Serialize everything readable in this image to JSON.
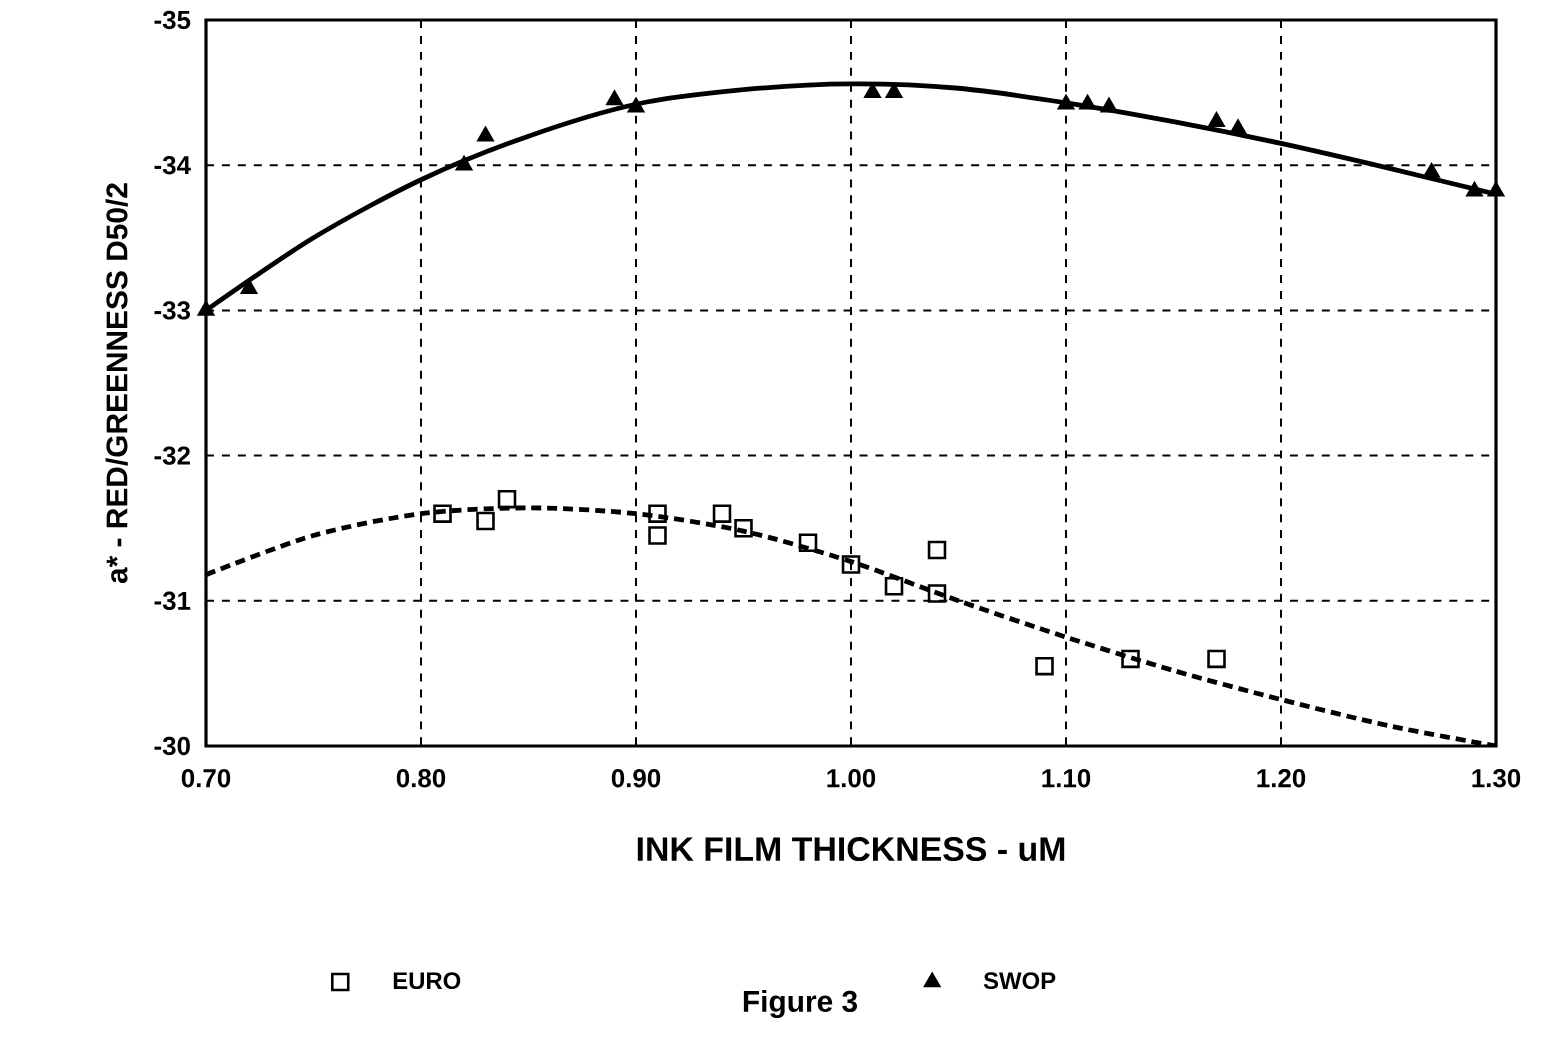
{
  "chart_data": {
    "type": "scatter",
    "xlabel": "INK FILM THICKNESS - uM",
    "ylabel": "a* - RED/GREENNESS D50/2",
    "annotations": [
      "Figure 3"
    ],
    "xlim": [
      0.7,
      1.3
    ],
    "ylim": [
      -30,
      -35
    ],
    "xticks": [
      {
        "value": 0.7,
        "label": "0.70"
      },
      {
        "value": 0.8,
        "label": "0.80"
      },
      {
        "value": 0.9,
        "label": "0.90"
      },
      {
        "value": 1.0,
        "label": "1.00"
      },
      {
        "value": 1.1,
        "label": "1.10"
      },
      {
        "value": 1.2,
        "label": "1.20"
      },
      {
        "value": 1.3,
        "label": "1.30"
      }
    ],
    "yticks": [
      -35,
      -34,
      -33,
      -32,
      -31,
      -30
    ],
    "grid": true,
    "legend": "bottom",
    "series": [
      {
        "name": "EURO",
        "marker": "square",
        "color": "#000000",
        "x": [
          0.81,
          0.83,
          0.84,
          0.91,
          0.91,
          0.94,
          0.95,
          0.98,
          1.0,
          1.02,
          1.04,
          1.04,
          1.09,
          1.13,
          1.17
        ],
        "values": [
          -31.6,
          -31.55,
          -31.7,
          -31.6,
          -31.45,
          -31.6,
          -31.5,
          -31.4,
          -31.25,
          -31.1,
          -31.35,
          -31.05,
          -30.55,
          -30.6,
          -30.6
        ]
      },
      {
        "name": "SWOP",
        "marker": "triangle",
        "color": "#000000",
        "x": [
          0.7,
          0.72,
          0.82,
          0.83,
          0.89,
          0.9,
          1.01,
          1.02,
          1.1,
          1.11,
          1.12,
          1.17,
          1.18,
          1.27,
          1.29,
          1.3
        ],
        "values": [
          -33.0,
          -33.15,
          -34.0,
          -34.2,
          -34.45,
          -34.4,
          -34.5,
          -34.5,
          -34.42,
          -34.42,
          -34.4,
          -34.3,
          -34.25,
          -33.95,
          -33.82,
          -33.82
        ]
      },
      {
        "type": "line",
        "marker": "none",
        "line_style": "dashed",
        "color": "#000000",
        "x": [
          0.7,
          0.75,
          0.8,
          0.85,
          0.9,
          0.95,
          1.0,
          1.05,
          1.1,
          1.15,
          1.2,
          1.25,
          1.3
        ],
        "values": [
          -31.18,
          -31.45,
          -31.6,
          -31.64,
          -31.6,
          -31.48,
          -31.27,
          -31.0,
          -30.75,
          -30.52,
          -30.32,
          -30.14,
          -30.0
        ]
      },
      {
        "type": "line",
        "marker": "none",
        "line_style": "solid",
        "color": "#000000",
        "x": [
          0.7,
          0.75,
          0.8,
          0.85,
          0.9,
          0.95,
          1.0,
          1.05,
          1.1,
          1.15,
          1.2,
          1.25,
          1.3
        ],
        "values": [
          -33.0,
          -33.5,
          -33.9,
          -34.2,
          -34.42,
          -34.52,
          -34.56,
          -34.53,
          -34.43,
          -34.3,
          -34.15,
          -33.98,
          -33.8
        ]
      }
    ]
  }
}
